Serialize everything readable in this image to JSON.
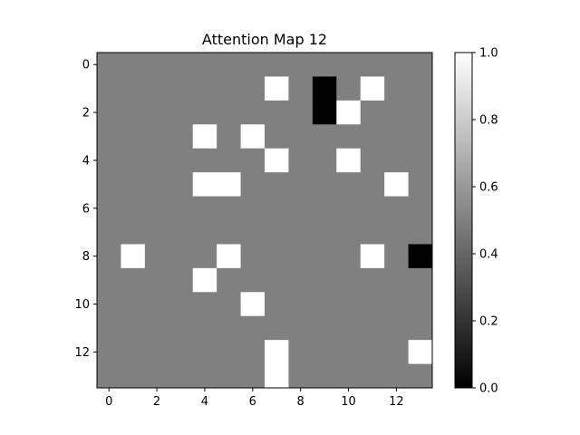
{
  "chart_data": {
    "type": "heatmap",
    "title": "Attention Map 12",
    "xlabel": "",
    "ylabel": "",
    "colormap": "gray",
    "vmin": 0.0,
    "vmax": 1.0,
    "x_ticks": [
      0,
      2,
      4,
      6,
      8,
      10,
      12
    ],
    "y_ticks": [
      0,
      2,
      4,
      6,
      8,
      10,
      12
    ],
    "colorbar_ticks": [
      "0.0",
      "0.2",
      "0.4",
      "0.6",
      "0.8",
      "1.0"
    ],
    "values": [
      [
        0.5,
        0.5,
        0.5,
        0.5,
        0.5,
        0.5,
        0.5,
        0.5,
        0.5,
        0.5,
        0.5,
        0.5,
        0.5,
        0.5
      ],
      [
        0.5,
        0.5,
        0.5,
        0.5,
        0.5,
        0.5,
        0.5,
        1.0,
        0.5,
        0.0,
        0.5,
        1.0,
        0.5,
        0.5
      ],
      [
        0.5,
        0.5,
        0.5,
        0.5,
        0.5,
        0.5,
        0.5,
        0.5,
        0.5,
        0.0,
        1.0,
        0.5,
        0.5,
        0.5
      ],
      [
        0.5,
        0.5,
        0.5,
        0.5,
        1.0,
        0.5,
        1.0,
        0.5,
        0.5,
        0.5,
        0.5,
        0.5,
        0.5,
        0.5
      ],
      [
        0.5,
        0.5,
        0.5,
        0.5,
        0.5,
        0.5,
        0.5,
        1.0,
        0.5,
        0.5,
        1.0,
        0.5,
        0.5,
        0.5
      ],
      [
        0.5,
        0.5,
        0.5,
        0.5,
        1.0,
        1.0,
        0.5,
        0.5,
        0.5,
        0.5,
        0.5,
        0.5,
        1.0,
        0.5
      ],
      [
        0.5,
        0.5,
        0.5,
        0.5,
        0.5,
        0.5,
        0.5,
        0.5,
        0.5,
        0.5,
        0.5,
        0.5,
        0.5,
        0.5
      ],
      [
        0.5,
        0.5,
        0.5,
        0.5,
        0.5,
        0.5,
        0.5,
        0.5,
        0.5,
        0.5,
        0.5,
        0.5,
        0.5,
        0.5
      ],
      [
        0.5,
        1.0,
        0.5,
        0.5,
        0.5,
        1.0,
        0.5,
        0.5,
        0.5,
        0.5,
        0.5,
        1.0,
        0.5,
        0.0
      ],
      [
        0.5,
        0.5,
        0.5,
        0.5,
        1.0,
        0.5,
        0.5,
        0.5,
        0.5,
        0.5,
        0.5,
        0.5,
        0.5,
        0.5
      ],
      [
        0.5,
        0.5,
        0.5,
        0.5,
        0.5,
        0.5,
        1.0,
        0.5,
        0.5,
        0.5,
        0.5,
        0.5,
        0.5,
        0.5
      ],
      [
        0.5,
        0.5,
        0.5,
        0.5,
        0.5,
        0.5,
        0.5,
        0.5,
        0.5,
        0.5,
        0.5,
        0.5,
        0.5,
        0.5
      ],
      [
        0.5,
        0.5,
        0.5,
        0.5,
        0.5,
        0.5,
        0.5,
        1.0,
        0.5,
        0.5,
        0.5,
        0.5,
        0.5,
        1.0
      ],
      [
        0.5,
        0.5,
        0.5,
        0.5,
        0.5,
        0.5,
        0.5,
        1.0,
        0.5,
        0.5,
        0.5,
        0.5,
        0.5,
        0.5
      ]
    ]
  }
}
